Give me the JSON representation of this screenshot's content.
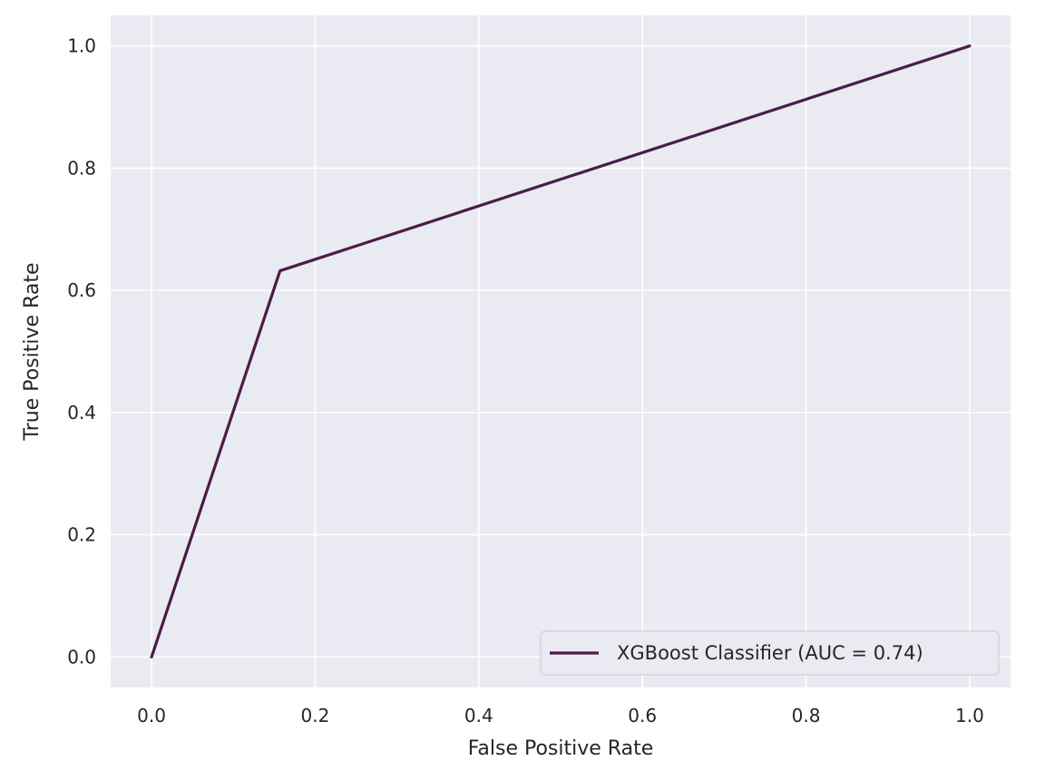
{
  "chart_data": {
    "type": "line",
    "title": "",
    "xlabel": "False Positive Rate",
    "ylabel": "True Positive Rate",
    "xlim": [
      -0.05,
      1.05
    ],
    "ylim": [
      -0.05,
      1.05
    ],
    "xticks": [
      0.0,
      0.2,
      0.4,
      0.6,
      0.8,
      1.0
    ],
    "xtick_labels": [
      "0.0",
      "0.2",
      "0.4",
      "0.6",
      "0.8",
      "1.0"
    ],
    "yticks": [
      0.0,
      0.2,
      0.4,
      0.6,
      0.8,
      1.0
    ],
    "ytick_labels": [
      "0.0",
      "0.2",
      "0.4",
      "0.6",
      "0.8",
      "1.0"
    ],
    "grid": true,
    "legend_position": "bottom-right",
    "background_color": "#eaeaf2",
    "grid_color": "#ffffff",
    "series": [
      {
        "name": "XGBoost Classifier (AUC = 0.74)",
        "color": "#4a1c4a",
        "x": [
          0.0,
          0.157,
          1.0
        ],
        "y": [
          0.0,
          0.632,
          1.0
        ]
      }
    ]
  }
}
